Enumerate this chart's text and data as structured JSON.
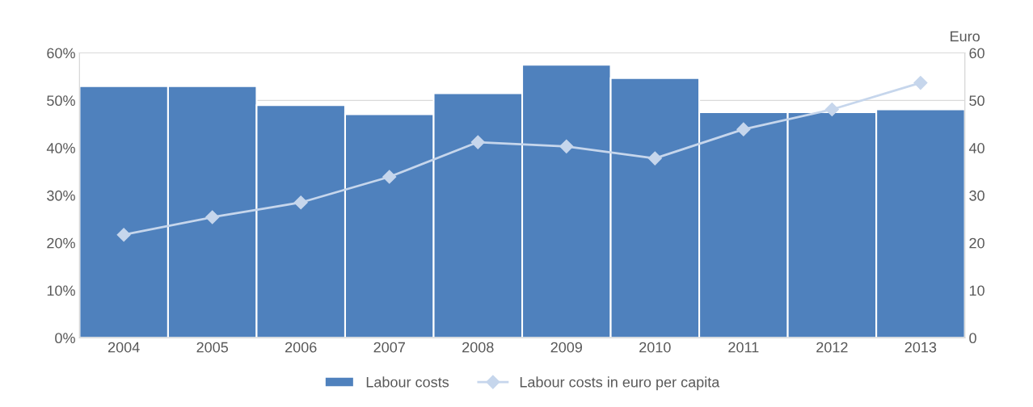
{
  "chart_data": {
    "type": "bar",
    "categories": [
      "2004",
      "2005",
      "2006",
      "2007",
      "2008",
      "2009",
      "2010",
      "2011",
      "2012",
      "2013"
    ],
    "series": [
      {
        "name": "Labour costs",
        "color": "#4f81bd",
        "values": [
          53.0,
          53.0,
          49.0,
          47.1,
          51.5,
          57.5,
          54.7,
          47.5,
          47.5,
          48.1
        ]
      },
      {
        "name": "Labour costs in euro per capita",
        "type": "line",
        "axis": "y2",
        "color": "#c6d6ec",
        "marker": "diamond",
        "values": [
          21.7,
          25.4,
          28.5,
          33.9,
          41.2,
          40.3,
          37.8,
          43.9,
          48.1,
          53.7
        ]
      }
    ],
    "ylim": [
      0,
      60
    ],
    "yticks": [
      {
        "value": 0,
        "label": "0%"
      },
      {
        "value": 10,
        "label": "10%"
      },
      {
        "value": 20,
        "label": "20%"
      },
      {
        "value": 30,
        "label": "30%"
      },
      {
        "value": 40,
        "label": "40%"
      },
      {
        "value": 50,
        "label": "50%"
      },
      {
        "value": 60,
        "label": "60%"
      }
    ],
    "y2lim": [
      0,
      60
    ],
    "y2ticks": [
      0,
      10,
      20,
      30,
      40,
      50,
      60
    ],
    "y2label": "Euro",
    "grid": "y",
    "legend": "bottom"
  }
}
